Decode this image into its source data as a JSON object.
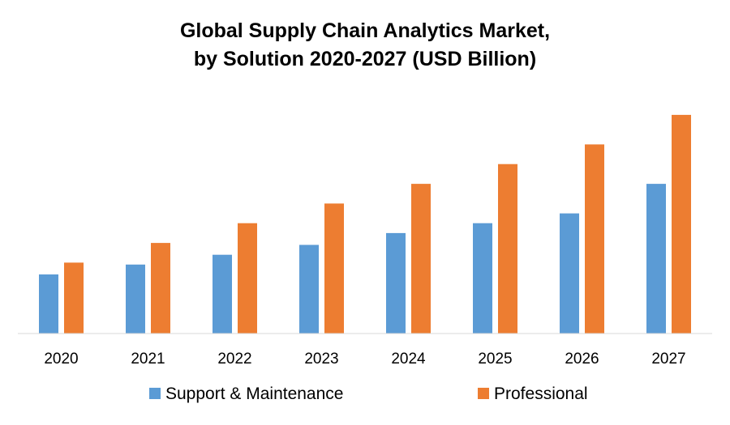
{
  "chart_data": {
    "type": "bar",
    "title": "Global Supply Chain Analytics Market,",
    "subtitle": "by Solution 2020-2027 (USD Billion)",
    "xlabel": "",
    "ylabel": "",
    "categories": [
      "2020",
      "2021",
      "2022",
      "2023",
      "2024",
      "2025",
      "2026",
      "2027"
    ],
    "series": [
      {
        "name": "Support & Maintenance",
        "color": "#5B9BD5",
        "values": [
          3.0,
          3.5,
          4.0,
          4.5,
          5.1,
          5.6,
          6.1,
          7.6
        ]
      },
      {
        "name": "Professional",
        "color": "#ED7D31",
        "values": [
          3.6,
          4.6,
          5.6,
          6.6,
          7.6,
          8.6,
          9.6,
          11.1
        ]
      }
    ],
    "ylim": [
      0,
      12
    ],
    "grid": false,
    "legend_position": "bottom"
  }
}
